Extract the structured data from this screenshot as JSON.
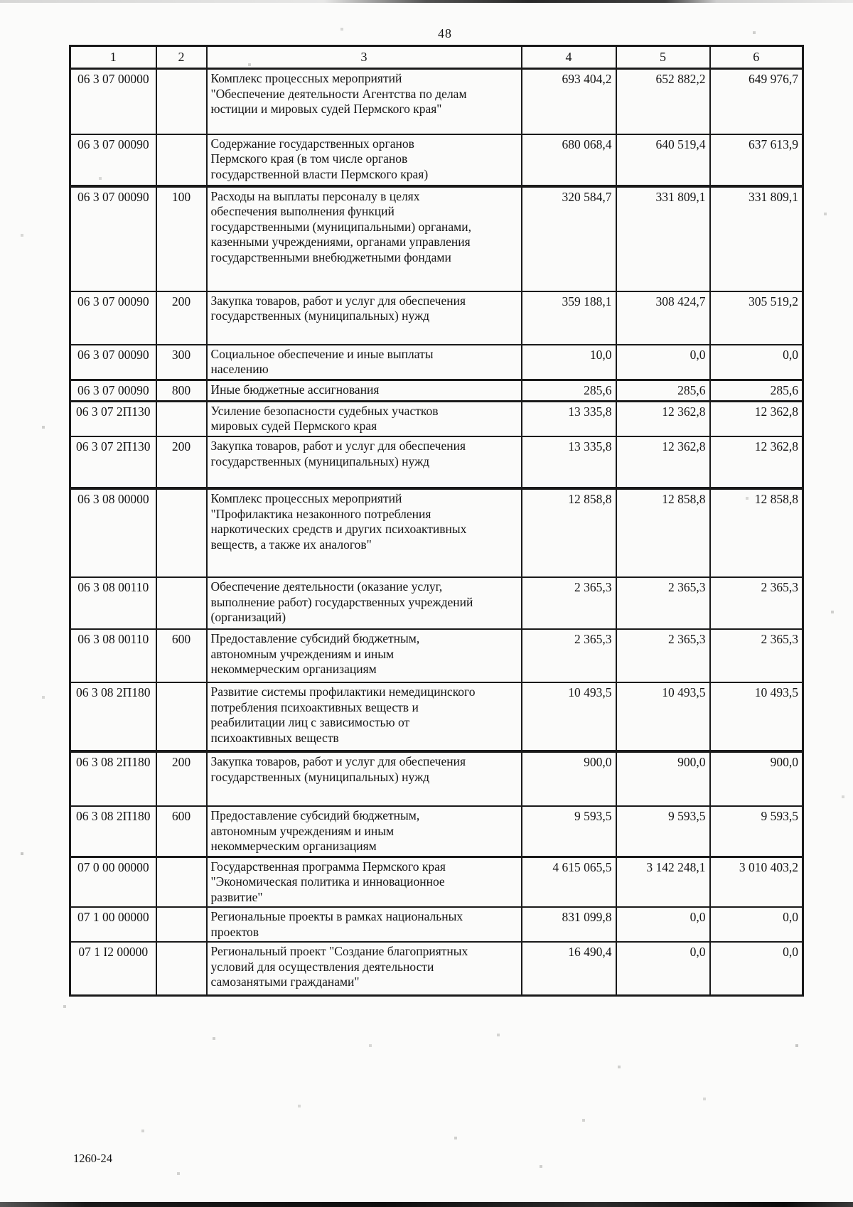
{
  "page": {
    "number": "48",
    "doc_code": "1260-24"
  },
  "table": {
    "column_headers": [
      "1",
      "2",
      "3",
      "4",
      "5",
      "6"
    ],
    "rows": [
      {
        "code": "06 3 07 00000",
        "group": "",
        "name": "Комплекс процессных мероприятий\n\"Обеспечение деятельности Агентства по делам\nюстиции и мировых судей Пермского края\"",
        "a4": "693 404,2",
        "a5": "652 882,2",
        "a6": "649 976,7"
      },
      {
        "code": "06 3 07 00090",
        "group": "",
        "name": "Содержание государственных органов\nПермского края (в том числе органов\nгосударственной власти Пермского края)",
        "a4": "680 068,4",
        "a5": "640 519,4",
        "a6": "637 613,9"
      },
      {
        "code": "06 3 07 00090",
        "group": "100",
        "name": "Расходы на выплаты персоналу в целях\nобеспечения выполнения функций\nгосударственными (муниципальными) органами,\nказенными учреждениями, органами управления\nгосударственными внебюджетными фондами",
        "a4": "320 584,7",
        "a5": "331 809,1",
        "a6": "331 809,1"
      },
      {
        "code": "06 3 07 00090",
        "group": "200",
        "name": "Закупка товаров, работ и услуг для обеспечения\nгосударственных (муниципальных) нужд",
        "a4": "359 188,1",
        "a5": "308 424,7",
        "a6": "305 519,2"
      },
      {
        "code": "06 3 07 00090",
        "group": "300",
        "name": "Социальное обеспечение и иные выплаты\nнаселению",
        "a4": "10,0",
        "a5": "0,0",
        "a6": "0,0"
      },
      {
        "code": "06 3 07 00090",
        "group": "800",
        "name": "Иные бюджетные ассигнования",
        "a4": "285,6",
        "a5": "285,6",
        "a6": "285,6"
      },
      {
        "code": "06 3 07 2П130",
        "group": "",
        "name": "Усиление безопасности судебных участков\nмировых судей Пермского края",
        "a4": "13 335,8",
        "a5": "12 362,8",
        "a6": "12 362,8"
      },
      {
        "code": "06 3 07 2П130",
        "group": "200",
        "name": "Закупка товаров, работ и услуг для обеспечения\nгосударственных (муниципальных) нужд",
        "a4": "13 335,8",
        "a5": "12 362,8",
        "a6": "12 362,8"
      },
      {
        "code": "06 3 08 00000",
        "group": "",
        "name": "Комплекс процессных мероприятий\n\"Профилактика незаконного потребления\nнаркотических средств и других психоактивных\nвеществ, а также их аналогов\"",
        "a4": "12 858,8",
        "a5": "12 858,8",
        "a6": "12 858,8"
      },
      {
        "code": "06 3 08 00110",
        "group": "",
        "name": "Обеспечение деятельности (оказание услуг,\nвыполнение работ) государственных учреждений\n(организаций)",
        "a4": "2 365,3",
        "a5": "2 365,3",
        "a6": "2 365,3"
      },
      {
        "code": "06 3 08 00110",
        "group": "600",
        "name": "Предоставление субсидий бюджетным,\nавтономным учреждениям и иным\nнекоммерческим организациям",
        "a4": "2 365,3",
        "a5": "2 365,3",
        "a6": "2 365,3"
      },
      {
        "code": "06 3 08 2П180",
        "group": "",
        "name": "Развитие системы профилактики немедицинского\nпотребления психоактивных веществ и\nреабилитации лиц с зависимостью от\nпсихоактивных веществ",
        "a4": "10 493,5",
        "a5": "10 493,5",
        "a6": "10 493,5"
      },
      {
        "code": "06 3 08 2П180",
        "group": "200",
        "name": "Закупка товаров, работ и услуг для обеспечения\nгосударственных (муниципальных) нужд",
        "a4": "900,0",
        "a5": "900,0",
        "a6": "900,0"
      },
      {
        "code": "06 3 08 2П180",
        "group": "600",
        "name": "Предоставление субсидий бюджетным,\nавтономным учреждениям и иным\nнекоммерческим организациям",
        "a4": "9 593,5",
        "a5": "9 593,5",
        "a6": "9 593,5"
      },
      {
        "code": "07 0 00 00000",
        "group": "",
        "name": "Государственная программа Пермского края\n\"Экономическая политика и инновационное\nразвитие\"",
        "a4": "4 615 065,5",
        "a5": "3 142 248,1",
        "a6": "3 010 403,2"
      },
      {
        "code": "07 1 00 00000",
        "group": "",
        "name": "Региональные проекты в рамках национальных\nпроектов",
        "a4": "831 099,8",
        "a5": "0,0",
        "a6": "0,0"
      },
      {
        "code": "07 1 I2 00000",
        "group": "",
        "name": "Региональный проект \"Создание благоприятных\nусловий для осуществления деятельности\nсамозанятыми гражданами\"",
        "a4": "16 490,4",
        "a5": "0,0",
        "a6": "0,0"
      }
    ]
  }
}
